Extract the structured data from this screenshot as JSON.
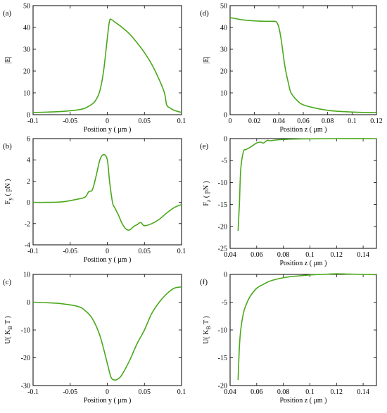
{
  "chart_data": [
    {
      "id": "a",
      "panel_label": "(a)",
      "type": "line",
      "xlabel": "Position y ( μm )",
      "ylabel": "|E|",
      "xlim": [
        -0.1,
        0.1
      ],
      "ylim": [
        0,
        50
      ],
      "xticks": [
        -0.1,
        -0.05,
        0,
        0.05,
        0.1
      ],
      "xtick_labels": [
        "-0.1",
        "-0.05",
        "0",
        "0.05",
        "0.1"
      ],
      "yticks": [
        0,
        10,
        20,
        30,
        40,
        50
      ],
      "ytick_labels": [
        "0",
        "10",
        "20",
        "30",
        "40",
        "50"
      ],
      "color": "#4aa81b",
      "x": [
        -0.1,
        -0.08,
        -0.06,
        -0.04,
        -0.03,
        -0.02,
        -0.015,
        -0.01,
        -0.005,
        0,
        0.003,
        0.006,
        0.01,
        0.02,
        0.03,
        0.04,
        0.05,
        0.06,
        0.07,
        0.077,
        0.08,
        0.085,
        0.09,
        0.1
      ],
      "y": [
        1,
        1.2,
        1.5,
        2.2,
        3,
        5,
        7,
        11,
        20,
        35,
        43,
        43.5,
        42.5,
        40,
        37,
        33,
        28.5,
        23,
        16,
        10,
        4.5,
        3,
        2,
        1
      ]
    },
    {
      "id": "d",
      "panel_label": "(d)",
      "type": "line",
      "xlabel": "Position z ( μm )",
      "ylabel": "|E|",
      "xlim": [
        0,
        0.12
      ],
      "ylim": [
        0,
        50
      ],
      "xticks": [
        0,
        0.02,
        0.04,
        0.06,
        0.08,
        0.1,
        0.12
      ],
      "xtick_labels": [
        "0",
        "0.02",
        "0.04",
        "0.06",
        "0.08",
        "0.1",
        "0.12"
      ],
      "yticks": [
        0,
        10,
        20,
        30,
        40,
        50
      ],
      "ytick_labels": [
        "0",
        "10",
        "20",
        "30",
        "40",
        "50"
      ],
      "color": "#4aa81b",
      "x": [
        0,
        0.005,
        0.01,
        0.02,
        0.03,
        0.035,
        0.038,
        0.04,
        0.042,
        0.045,
        0.048,
        0.05,
        0.055,
        0.06,
        0.07,
        0.08,
        0.09,
        0.1,
        0.11,
        0.12
      ],
      "y": [
        44.5,
        44,
        43.5,
        43,
        42.8,
        42.8,
        42.5,
        40,
        34,
        22,
        14,
        10,
        6.5,
        4.5,
        3,
        2,
        1.5,
        1.2,
        1,
        1
      ]
    },
    {
      "id": "b",
      "panel_label": "(b)",
      "type": "line",
      "xlabel": "Position y ( μm )",
      "ylabel": "F_y ( pN )",
      "ylabel_main": "F",
      "ylabel_sub": "y",
      "ylabel_rest": " ( pN )",
      "xlim": [
        -0.1,
        0.1
      ],
      "ylim": [
        -4,
        6
      ],
      "xticks": [
        -0.1,
        -0.05,
        0,
        0.05,
        0.1
      ],
      "xtick_labels": [
        "-0.1",
        "-0.05",
        "0",
        "0.05",
        "0.1"
      ],
      "yticks": [
        -4,
        -2,
        0,
        2,
        4,
        6
      ],
      "ytick_labels": [
        "-4",
        "-2",
        "0",
        "2",
        "4",
        "6"
      ],
      "color": "#4aa81b",
      "x": [
        -0.1,
        -0.08,
        -0.06,
        -0.04,
        -0.03,
        -0.025,
        -0.02,
        -0.015,
        -0.01,
        -0.005,
        0,
        0.003,
        0.007,
        0.01,
        0.015,
        0.02,
        0.025,
        0.03,
        0.035,
        0.04,
        0.045,
        0.05,
        0.06,
        0.07,
        0.08,
        0.09,
        0.1
      ],
      "y": [
        0,
        0,
        0.05,
        0.3,
        0.5,
        1,
        1.2,
        2.5,
        4,
        4.5,
        4,
        2,
        0,
        -0.5,
        -1.2,
        -2,
        -2.5,
        -2.6,
        -2.3,
        -2.1,
        -1.9,
        -2.2,
        -2,
        -1.6,
        -1,
        -0.5,
        -0.2
      ]
    },
    {
      "id": "e",
      "panel_label": "(e)",
      "type": "line",
      "xlabel": "Position z ( μm )",
      "ylabel": "F_z ( pN )",
      "ylabel_main": "F",
      "ylabel_sub": "z",
      "ylabel_rest": " ( pN )",
      "xlim": [
        0.04,
        0.15
      ],
      "ylim": [
        -25,
        0
      ],
      "xticks": [
        0.04,
        0.06,
        0.08,
        0.1,
        0.12,
        0.14
      ],
      "xtick_labels": [
        "0.04",
        "0.06",
        "0.08",
        "0.1",
        "0.12",
        "0.14"
      ],
      "yticks": [
        -25,
        -20,
        -15,
        -10,
        -5,
        0
      ],
      "ytick_labels": [
        "-25",
        "-20",
        "-15",
        "-10",
        "-5",
        "0"
      ],
      "color": "#4aa81b",
      "x": [
        0.046,
        0.047,
        0.048,
        0.05,
        0.052,
        0.055,
        0.06,
        0.063,
        0.065,
        0.068,
        0.07,
        0.075,
        0.08,
        0.09,
        0.1,
        0.12,
        0.15
      ],
      "y": [
        -21,
        -15,
        -7,
        -3,
        -2.5,
        -2,
        -1,
        -0.8,
        -1,
        -0.4,
        -0.5,
        -0.3,
        -0.2,
        -0.1,
        -0.05,
        0,
        0
      ]
    },
    {
      "id": "c",
      "panel_label": "(c)",
      "type": "line",
      "xlabel": "Position y ( μm )",
      "ylabel": "U( K_B T )",
      "ylabel_main": "U( K",
      "ylabel_sub": "B",
      "ylabel_rest": " T )",
      "xlim": [
        -0.1,
        0.1
      ],
      "ylim": [
        -30,
        10
      ],
      "xticks": [
        -0.1,
        -0.05,
        0,
        0.05,
        0.1
      ],
      "xtick_labels": [
        "-0.1",
        "-0.05",
        "0",
        "0.05",
        "0.1"
      ],
      "yticks": [
        -30,
        -20,
        -10,
        0,
        10
      ],
      "ytick_labels": [
        "-30",
        "-20",
        "-10",
        "0",
        "10"
      ],
      "color": "#4aa81b",
      "x": [
        -0.1,
        -0.08,
        -0.06,
        -0.04,
        -0.03,
        -0.02,
        -0.01,
        0,
        0.005,
        0.01,
        0.015,
        0.02,
        0.03,
        0.04,
        0.05,
        0.06,
        0.07,
        0.08,
        0.09,
        0.1
      ],
      "y": [
        0,
        -0.2,
        -0.6,
        -1.5,
        -3,
        -6,
        -12,
        -22,
        -27,
        -28,
        -27.5,
        -26,
        -21,
        -15,
        -10,
        -4,
        0,
        3,
        5,
        5.5
      ]
    },
    {
      "id": "f",
      "panel_label": "(f)",
      "type": "line",
      "xlabel": "Position z ( μm )",
      "ylabel": "U( K_B T )",
      "ylabel_main": "U( K",
      "ylabel_sub": "B",
      "ylabel_rest": " T )",
      "xlim": [
        0.04,
        0.15
      ],
      "ylim": [
        -20,
        0
      ],
      "xticks": [
        0.04,
        0.06,
        0.08,
        0.1,
        0.12,
        0.14
      ],
      "xtick_labels": [
        "0.04",
        "0.06",
        "0.08",
        "0.1",
        "0.12",
        "0.14"
      ],
      "yticks": [
        -20,
        -15,
        -10,
        -5,
        0
      ],
      "ytick_labels": [
        "-20",
        "-15",
        "-10",
        "-5",
        "0"
      ],
      "color": "#4aa81b",
      "x": [
        0.046,
        0.047,
        0.048,
        0.05,
        0.052,
        0.055,
        0.06,
        0.065,
        0.07,
        0.08,
        0.09,
        0.1,
        0.11,
        0.12,
        0.13,
        0.14,
        0.15
      ],
      "y": [
        -19,
        -13,
        -10,
        -7,
        -5.5,
        -4,
        -2.5,
        -1.8,
        -1.2,
        -0.6,
        -0.3,
        -0.1,
        0,
        0.1,
        0.05,
        0,
        -0.05
      ]
    }
  ]
}
